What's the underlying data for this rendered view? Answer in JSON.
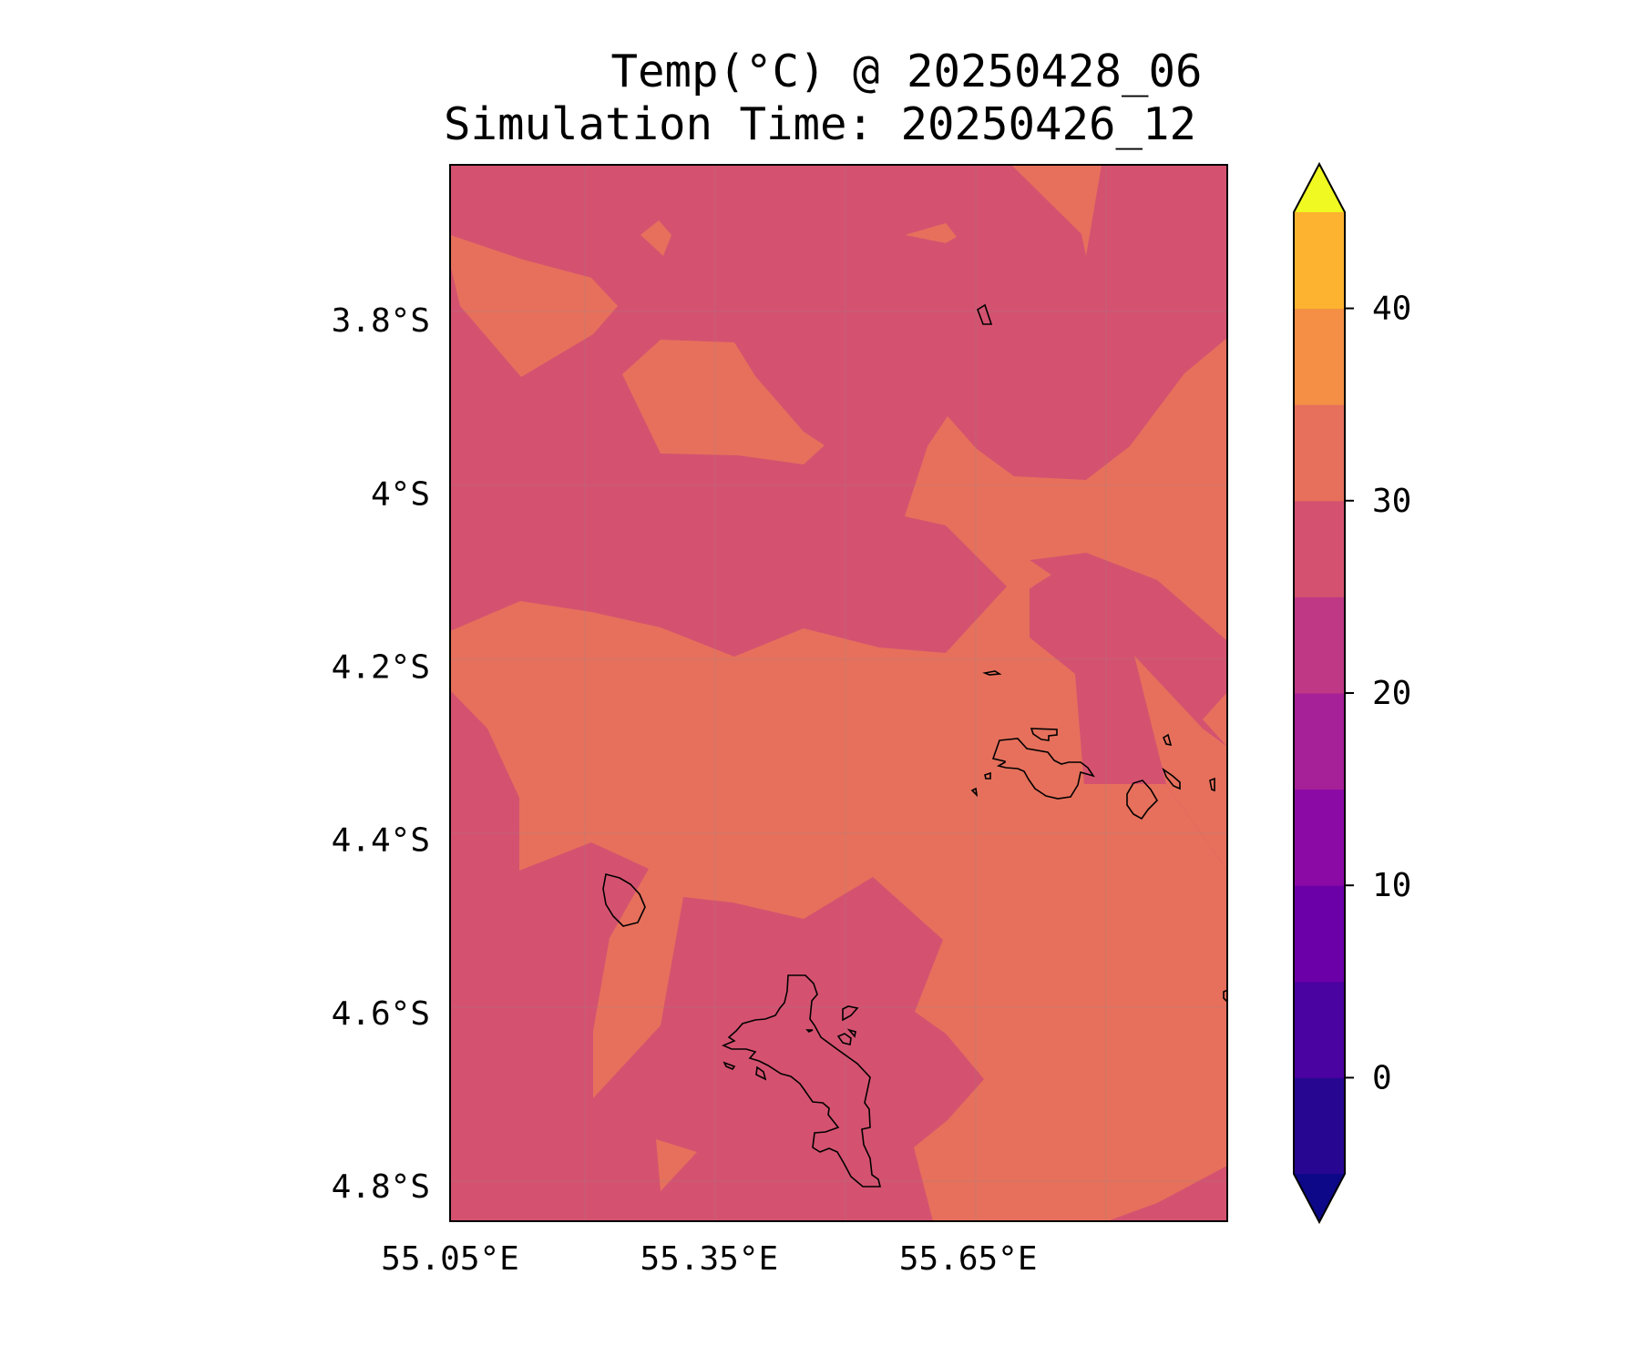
{
  "title": {
    "line1": "Temp(°C) @ 20250428_06",
    "line2": "Simulation Time: 20250426_12"
  },
  "chart_data": {
    "type": "heatmap",
    "variable": "Temp(°C)",
    "lon_range": [
      55.05,
      55.95
    ],
    "lat_range": [
      -4.84,
      -3.62
    ],
    "x_ticks": [
      {
        "value": 55.05,
        "label": "55.05°E"
      },
      {
        "value": 55.35,
        "label": "55.35°E"
      },
      {
        "value": 55.65,
        "label": "55.65°E"
      }
    ],
    "y_ticks": [
      {
        "value": -3.8,
        "label": "3.8°S"
      },
      {
        "value": -4.0,
        "label": "4°S"
      },
      {
        "value": -4.2,
        "label": "4.2°S"
      },
      {
        "value": -4.4,
        "label": "4.4°S"
      },
      {
        "value": -4.6,
        "label": "4.6°S"
      },
      {
        "value": -4.8,
        "label": "4.8°S"
      }
    ],
    "grid": true,
    "field_levels": {
      "background": "25–30",
      "regions": "30–35"
    },
    "colorbar": {
      "position": "right",
      "extend": "both",
      "levels": [
        -5,
        0,
        5,
        10,
        15,
        20,
        25,
        30,
        35,
        40,
        45
      ],
      "colors": [
        "#270792",
        "#4a02a0",
        "#6c00a8",
        "#8b0aa5",
        "#a62098",
        "#be3885",
        "#d45270",
        "#e6705c",
        "#f48f45",
        "#fdb32f",
        "#f3e127"
      ],
      "under_color": "#0d0887",
      "over_color": "#f0f921",
      "ticks": [
        {
          "value": 0,
          "label": "0"
        },
        {
          "value": 10,
          "label": "10"
        },
        {
          "value": 20,
          "label": "20"
        },
        {
          "value": 30,
          "label": "30"
        },
        {
          "value": 40,
          "label": "40"
        }
      ]
    }
  }
}
